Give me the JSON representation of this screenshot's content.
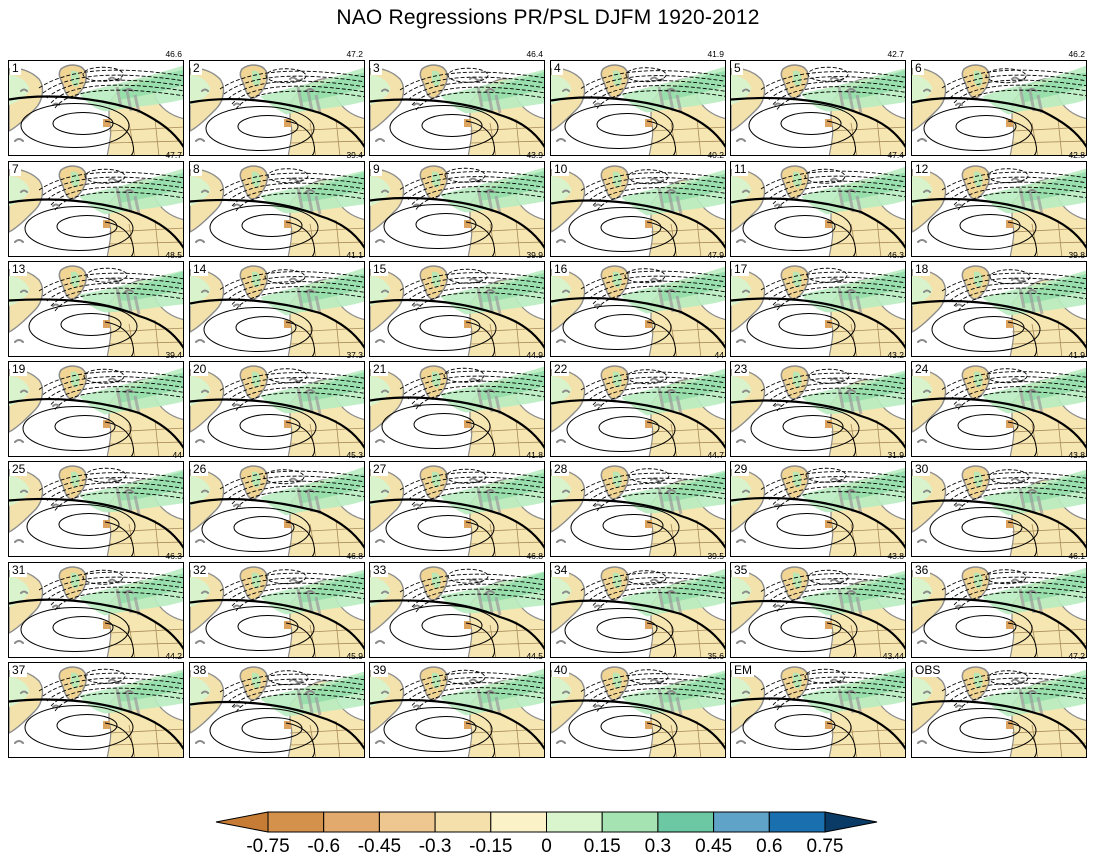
{
  "title": "NAO Regressions PR/PSL DJFM 1920-2012",
  "chart_data": {
    "type": "heatmap",
    "title": "NAO Regressions PR/PSL DJFM 1920-2012",
    "panels": [
      {
        "label": "1",
        "value": "46.6"
      },
      {
        "label": "2",
        "value": "47.2"
      },
      {
        "label": "3",
        "value": "46.4"
      },
      {
        "label": "4",
        "value": "41.9"
      },
      {
        "label": "5",
        "value": "42.7"
      },
      {
        "label": "6",
        "value": "46.2"
      },
      {
        "label": "7",
        "value": "47.7"
      },
      {
        "label": "8",
        "value": "39.4"
      },
      {
        "label": "9",
        "value": "43.9"
      },
      {
        "label": "10",
        "value": "40.2"
      },
      {
        "label": "11",
        "value": "47.4"
      },
      {
        "label": "12",
        "value": "42.8"
      },
      {
        "label": "13",
        "value": "48.5"
      },
      {
        "label": "14",
        "value": "41.1"
      },
      {
        "label": "15",
        "value": "39.9"
      },
      {
        "label": "16",
        "value": "47.9"
      },
      {
        "label": "17",
        "value": "46.3"
      },
      {
        "label": "18",
        "value": "39.8"
      },
      {
        "label": "19",
        "value": "39.4"
      },
      {
        "label": "20",
        "value": "37.3"
      },
      {
        "label": "21",
        "value": "44.9"
      },
      {
        "label": "22",
        "value": "44"
      },
      {
        "label": "23",
        "value": "43.2"
      },
      {
        "label": "24",
        "value": "41.9"
      },
      {
        "label": "25",
        "value": "44"
      },
      {
        "label": "26",
        "value": "45.3"
      },
      {
        "label": "27",
        "value": "41.8"
      },
      {
        "label": "28",
        "value": "44.7"
      },
      {
        "label": "29",
        "value": "31.9"
      },
      {
        "label": "30",
        "value": "43.8"
      },
      {
        "label": "31",
        "value": "46.3"
      },
      {
        "label": "32",
        "value": "46.8"
      },
      {
        "label": "33",
        "value": "46.8"
      },
      {
        "label": "34",
        "value": "39.5"
      },
      {
        "label": "35",
        "value": "43.8"
      },
      {
        "label": "36",
        "value": "46.1"
      },
      {
        "label": "37",
        "value": "44.2"
      },
      {
        "label": "38",
        "value": "45.9"
      },
      {
        "label": "39",
        "value": "44.5"
      },
      {
        "label": "40",
        "value": "35.6"
      },
      {
        "label": "EM",
        "value": "43.44"
      },
      {
        "label": "OBS",
        "value": "47.2"
      }
    ],
    "colorbar": {
      "labels": [
        "-0.75",
        "-0.6",
        "-0.45",
        "-0.3",
        "-0.15",
        "0",
        "0.15",
        "0.3",
        "0.45",
        "0.6",
        "0.75"
      ],
      "colors": [
        "#c67c35",
        "#d4914c",
        "#e2aa6c",
        "#edc78f",
        "#f5dfaa",
        "#fbf2c8",
        "#d8f5cd",
        "#a6e3b2",
        "#6cc7a3",
        "#5fa3c8",
        "#1a6fae",
        "#0a3a66"
      ]
    }
  }
}
